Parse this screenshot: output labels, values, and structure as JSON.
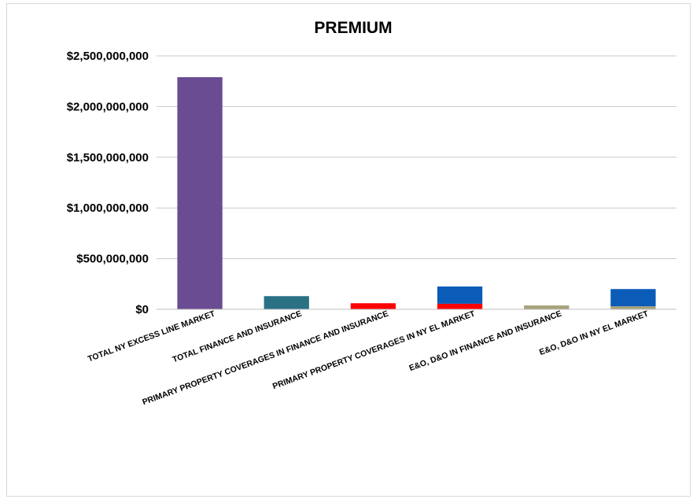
{
  "chart_data": {
    "type": "bar",
    "title": "PREMIUM",
    "xlabel": "",
    "ylabel": "",
    "ylim": [
      0,
      2500000000
    ],
    "y_ticks": [
      0,
      500000000,
      1000000000,
      1500000000,
      2000000000,
      2500000000
    ],
    "y_tick_labels": [
      "$0",
      "$500,000,000",
      "$1,000,000,000",
      "$1,500,000,000",
      "$2,000,000,000",
      "$2,500,000,000"
    ],
    "grid": true,
    "legend": "none",
    "categories": [
      "TOTAL NY EXCESS LINE MARKET",
      "TOTAL FINANCE AND INSURANCE",
      "PRIMARY PROPERTY COVERAGES IN FINANCE AND INSURANCE",
      "PRIMARY PROPERTY COVERAGES IN NY EL MARKET",
      "E&O, D&O IN FINANCE AND INSURANCE",
      "E&O, D&O IN NY EL MARKET"
    ],
    "bars": [
      {
        "category": "TOTAL NY EXCESS LINE MARKET",
        "segments": [
          {
            "value": 2290000000,
            "color": "#6a4c93"
          }
        ]
      },
      {
        "category": "TOTAL FINANCE AND INSURANCE",
        "segments": [
          {
            "value": 130000000,
            "color": "#2a7186"
          }
        ]
      },
      {
        "category": "PRIMARY PROPERTY COVERAGES IN FINANCE AND INSURANCE",
        "segments": [
          {
            "value": 60000000,
            "color": "#ff0000"
          }
        ]
      },
      {
        "category": "PRIMARY PROPERTY COVERAGES IN NY EL MARKET",
        "segments": [
          {
            "value": 55000000,
            "color": "#ff0000"
          },
          {
            "value": 170000000,
            "color": "#0b5bb8"
          }
        ]
      },
      {
        "category": "E&O, D&O IN FINANCE AND INSURANCE",
        "segments": [
          {
            "value": 38000000,
            "color": "#a8a27a"
          }
        ]
      },
      {
        "category": "E&O, D&O IN NY EL MARKET",
        "segments": [
          {
            "value": 30000000,
            "color": "#a8a27a"
          },
          {
            "value": 170000000,
            "color": "#0b5bb8"
          }
        ]
      }
    ]
  }
}
